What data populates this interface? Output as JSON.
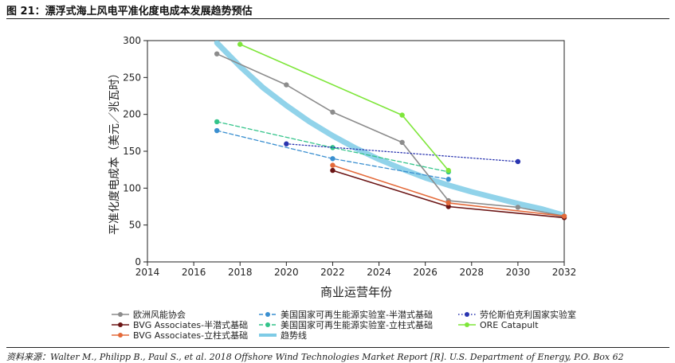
{
  "title": "图 21：漂浮式海上风电平准化度电成本发展趋势预估",
  "source": "资料来源：Walter M., Philipp B., Paul S., et al. 2018 Offshore Wind Technologies Market Report [R]. U.S. Department of Energy, P.O. Box 62",
  "chart_data": {
    "type": "line",
    "xlabel": "商业运营年份",
    "ylabel": "平准化度电成本（美元／兆瓦时）",
    "xlim": [
      2014,
      2032
    ],
    "ylim": [
      0,
      300
    ],
    "xticks": [
      2014,
      2016,
      2018,
      2020,
      2022,
      2024,
      2026,
      2028,
      2030,
      2032
    ],
    "yticks": [
      0,
      50,
      100,
      150,
      200,
      250,
      300
    ],
    "grid": false,
    "legend_position": "bottom",
    "series": [
      {
        "name": "欧洲风能协会",
        "color": "#8c8c8c",
        "dash": "",
        "width": 1.6,
        "marker": true,
        "points": [
          [
            2017,
            282
          ],
          [
            2020,
            240
          ],
          [
            2022,
            203
          ],
          [
            2025,
            162
          ],
          [
            2027,
            83
          ],
          [
            2030,
            74
          ],
          [
            2032,
            62
          ]
        ]
      },
      {
        "name": "BVG Associates-半潜式基础",
        "color": "#6b1515",
        "dash": "",
        "width": 1.6,
        "marker": true,
        "points": [
          [
            2022,
            124
          ],
          [
            2027,
            75
          ],
          [
            2032,
            60
          ]
        ]
      },
      {
        "name": "BVG Associates-立柱式基础",
        "color": "#e46a3a",
        "dash": "",
        "width": 1.6,
        "marker": true,
        "points": [
          [
            2022,
            131
          ],
          [
            2027,
            80
          ],
          [
            2032,
            62
          ]
        ]
      },
      {
        "name": "美国国家可再生能源实验室-半潜式基础",
        "color": "#3a8fd0",
        "dash": "5,3",
        "width": 1.3,
        "marker": true,
        "points": [
          [
            2017,
            178
          ],
          [
            2022,
            140
          ],
          [
            2027,
            112
          ]
        ]
      },
      {
        "name": "美国国家可再生能源实验室-立柱式基础",
        "color": "#33c48a",
        "dash": "5,3",
        "width": 1.3,
        "marker": true,
        "points": [
          [
            2017,
            190
          ],
          [
            2022,
            155
          ],
          [
            2027,
            122
          ]
        ]
      },
      {
        "name": "趋势线",
        "color": "#7ecbe6",
        "dash": "",
        "width": 7,
        "marker": false,
        "points": [
          [
            2017,
            297
          ],
          [
            2018,
            265
          ],
          [
            2019,
            236
          ],
          [
            2020,
            212
          ],
          [
            2021,
            190
          ],
          [
            2022,
            171
          ],
          [
            2023,
            154
          ],
          [
            2024,
            139
          ],
          [
            2025,
            126
          ],
          [
            2026,
            114
          ],
          [
            2027,
            104
          ],
          [
            2028,
            95
          ],
          [
            2029,
            87
          ],
          [
            2030,
            79
          ],
          [
            2031,
            72
          ],
          [
            2032,
            63
          ]
        ]
      },
      {
        "name": "劳伦斯伯克利国家实验室",
        "color": "#2a35b0",
        "dash": "1.5,2.5",
        "width": 1.3,
        "marker": true,
        "points": [
          [
            2020,
            160
          ],
          [
            2030,
            136
          ]
        ]
      },
      {
        "name": "ORE Catapult",
        "color": "#7ee63a",
        "dash": "",
        "width": 1.6,
        "marker": true,
        "points": [
          [
            2018,
            295
          ],
          [
            2025,
            199
          ],
          [
            2027,
            124
          ]
        ]
      }
    ],
    "legend": [
      {
        "name": "欧洲风能协会",
        "color": "#8c8c8c",
        "dash": ""
      },
      {
        "name": "BVG Associates-半潜式基础",
        "color": "#6b1515",
        "dash": ""
      },
      {
        "name": "BVG Associates-立柱式基础",
        "color": "#e46a3a",
        "dash": ""
      },
      {
        "name": "美国国家可再生能源实验室-半潜式基础",
        "color": "#3a8fd0",
        "dash": "5,3"
      },
      {
        "name": "美国国家可再生能源实验室-立柱式基础",
        "color": "#33c48a",
        "dash": "5,3"
      },
      {
        "name": "趋势线",
        "color": "#7ecbe6",
        "dash": "",
        "thick": true
      },
      {
        "name": "劳伦斯伯克利国家实验室",
        "color": "#2a35b0",
        "dash": "1.5,2.5"
      },
      {
        "name": "ORE Catapult",
        "color": "#7ee63a",
        "dash": ""
      }
    ]
  }
}
